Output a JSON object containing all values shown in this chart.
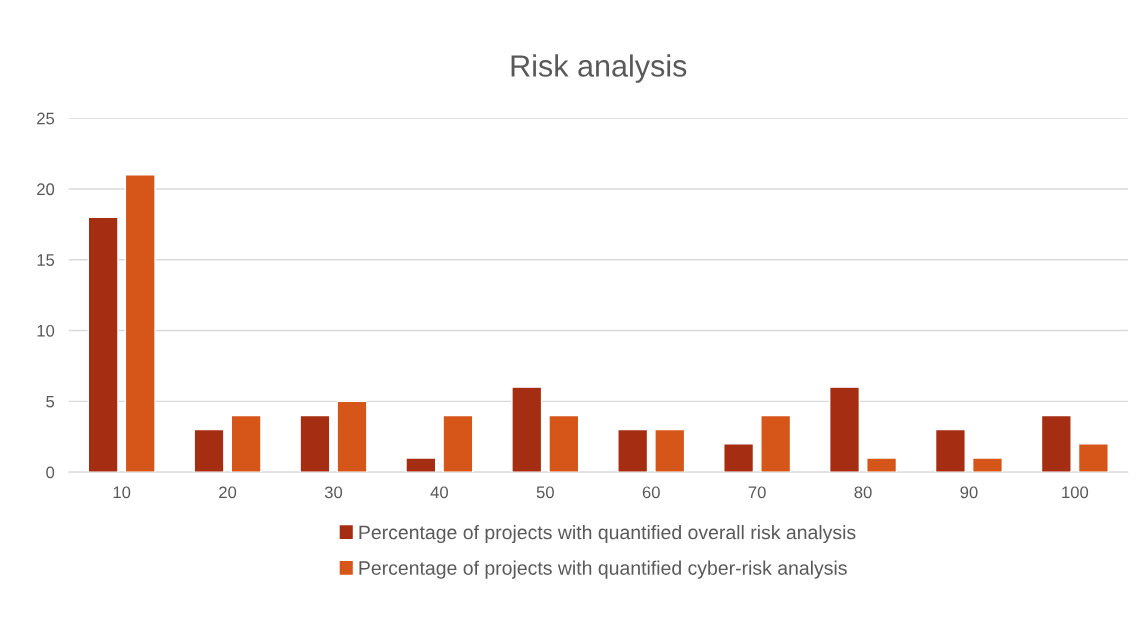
{
  "chart_data": {
    "type": "bar",
    "title": "Risk analysis",
    "categories": [
      "10",
      "20",
      "30",
      "40",
      "50",
      "60",
      "70",
      "80",
      "90",
      "100"
    ],
    "series": [
      {
        "name": "Percentage of projects with quantified overall risk analysis",
        "color": "#a52d12",
        "values": [
          18,
          3,
          4,
          1,
          6,
          3,
          2,
          6,
          3,
          4
        ]
      },
      {
        "name": "Percentage of projects with quantified cyber-risk analysis",
        "color": "#d6561a",
        "values": [
          21,
          4,
          5,
          4,
          4,
          3,
          4,
          1,
          1,
          2
        ]
      }
    ],
    "ylim": [
      0,
      25
    ],
    "yticks": [
      0,
      5,
      10,
      15,
      20,
      25
    ],
    "grid": "y",
    "legend": "bottom"
  }
}
